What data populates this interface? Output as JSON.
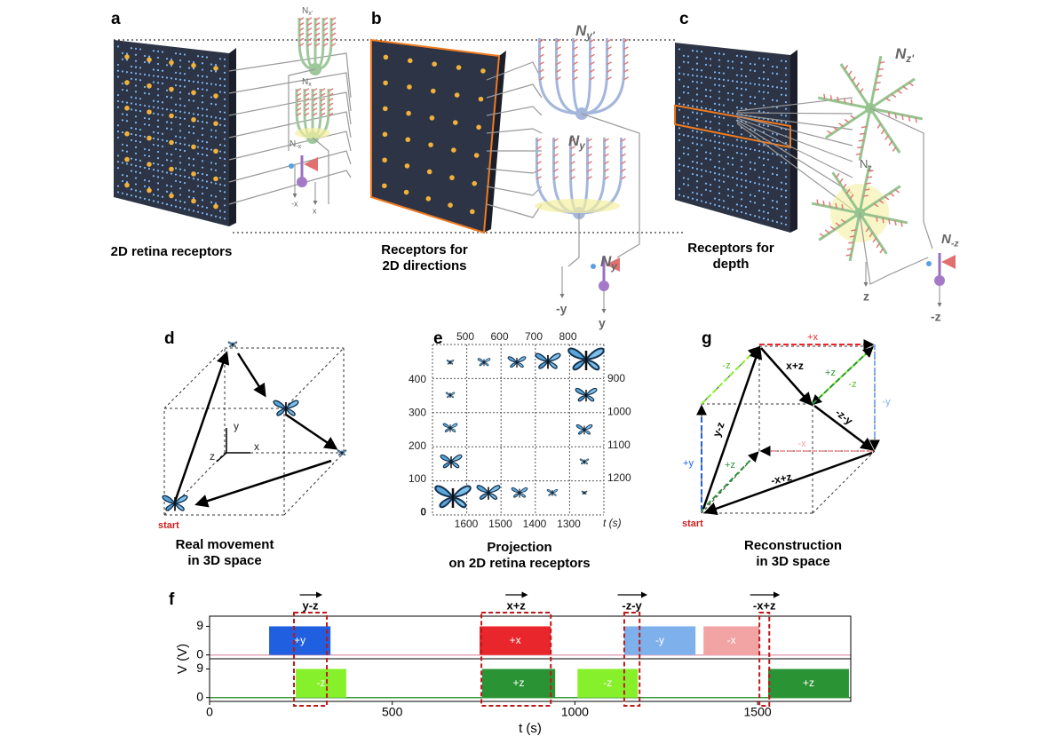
{
  "figure": {
    "a": {
      "letter": "a",
      "caption": [
        "2D retina receptors"
      ],
      "neurons": [
        {
          "symbol": "N",
          "sub": "x'"
        },
        {
          "symbol": "N",
          "sub": "x"
        },
        {
          "symbol": "N",
          "sub": "-x"
        }
      ],
      "outputs": [
        "-x",
        "x"
      ]
    },
    "b": {
      "letter": "b",
      "caption": [
        "Receptors for",
        "2D directions"
      ],
      "neurons": [
        {
          "symbol": "N",
          "sub": "y'"
        },
        {
          "symbol": "N",
          "sub": "y"
        },
        {
          "symbol": "N",
          "sub": "y"
        }
      ],
      "outputs": [
        "-y",
        "y"
      ]
    },
    "c": {
      "letter": "c",
      "caption": [
        "Receptors for",
        "depth"
      ],
      "neurons": [
        {
          "symbol": "N",
          "sub": "z'"
        },
        {
          "symbol": "N",
          "sub": "z"
        },
        {
          "symbol": "N",
          "sub": "-z"
        }
      ],
      "outputs": [
        "z",
        "-z"
      ]
    },
    "d": {
      "letter": "d",
      "caption": [
        "Real movement",
        "in 3D space"
      ],
      "start": "start",
      "axes": [
        "x",
        "y",
        "z"
      ]
    },
    "e": {
      "letter": "e",
      "caption": [
        "Projection",
        "on 2D retina receptors"
      ],
      "top": [
        500,
        600,
        700,
        800
      ],
      "right": [
        900,
        1000,
        1100,
        1200
      ],
      "bottom": [
        1600,
        1500,
        1400,
        1300
      ],
      "left": [
        400,
        300,
        200,
        100,
        0
      ],
      "time_label": "t (s)"
    },
    "g": {
      "letter": "g",
      "caption": [
        "Reconstruction",
        "in 3D space"
      ],
      "start": "start",
      "labels": [
        "+x",
        "-z",
        "x+z",
        "+z",
        "-z",
        "-y",
        "-z-y",
        "+y",
        "y-z",
        "-x",
        "+z",
        "-x+z"
      ]
    }
  },
  "chart_data": {
    "type": "pulse",
    "letter": "f",
    "xlabel": "t (s)",
    "ylabel": "V (V)",
    "xlim": [
      0,
      1755
    ],
    "xticks": [
      0,
      500,
      1000,
      1500
    ],
    "ylim": [
      -1.2,
      12.2
    ],
    "yticks": [
      0,
      9
    ],
    "rows": [
      {
        "baseline_color": "#e3a9b9",
        "pulses": [
          {
            "label": "+y",
            "start": 163,
            "end": 331,
            "value": 9,
            "color": "#1f5fe0"
          },
          {
            "label": "+x",
            "start": 739,
            "end": 934,
            "value": 9,
            "color": "#e8262b"
          },
          {
            "label": "-y",
            "start": 1135,
            "end": 1330,
            "value": 9,
            "color": "#7eb1ec"
          },
          {
            "label": "-x",
            "start": 1352,
            "end": 1505,
            "value": 9,
            "color": "#f2a3a3"
          }
        ]
      },
      {
        "baseline_color": "#3a9a3a",
        "pulses": [
          {
            "label": "-z",
            "start": 236,
            "end": 374,
            "value": 9,
            "color": "#86f02a"
          },
          {
            "label": "+z",
            "start": 746,
            "end": 946,
            "value": 9,
            "color": "#2a9435"
          },
          {
            "label": "-z",
            "start": 1007,
            "end": 1172,
            "value": 9,
            "color": "#86f02a"
          },
          {
            "label": "+z",
            "start": 1529,
            "end": 1750,
            "value": 9,
            "color": "#2a9435"
          }
        ]
      }
    ],
    "windows": [
      {
        "label": "y-z",
        "start": 231,
        "end": 321
      },
      {
        "label": "x+z",
        "start": 744,
        "end": 934
      },
      {
        "label": "-z-y",
        "start": 1135,
        "end": 1177
      },
      {
        "label": "-x+z",
        "start": 1505,
        "end": 1532
      }
    ]
  }
}
